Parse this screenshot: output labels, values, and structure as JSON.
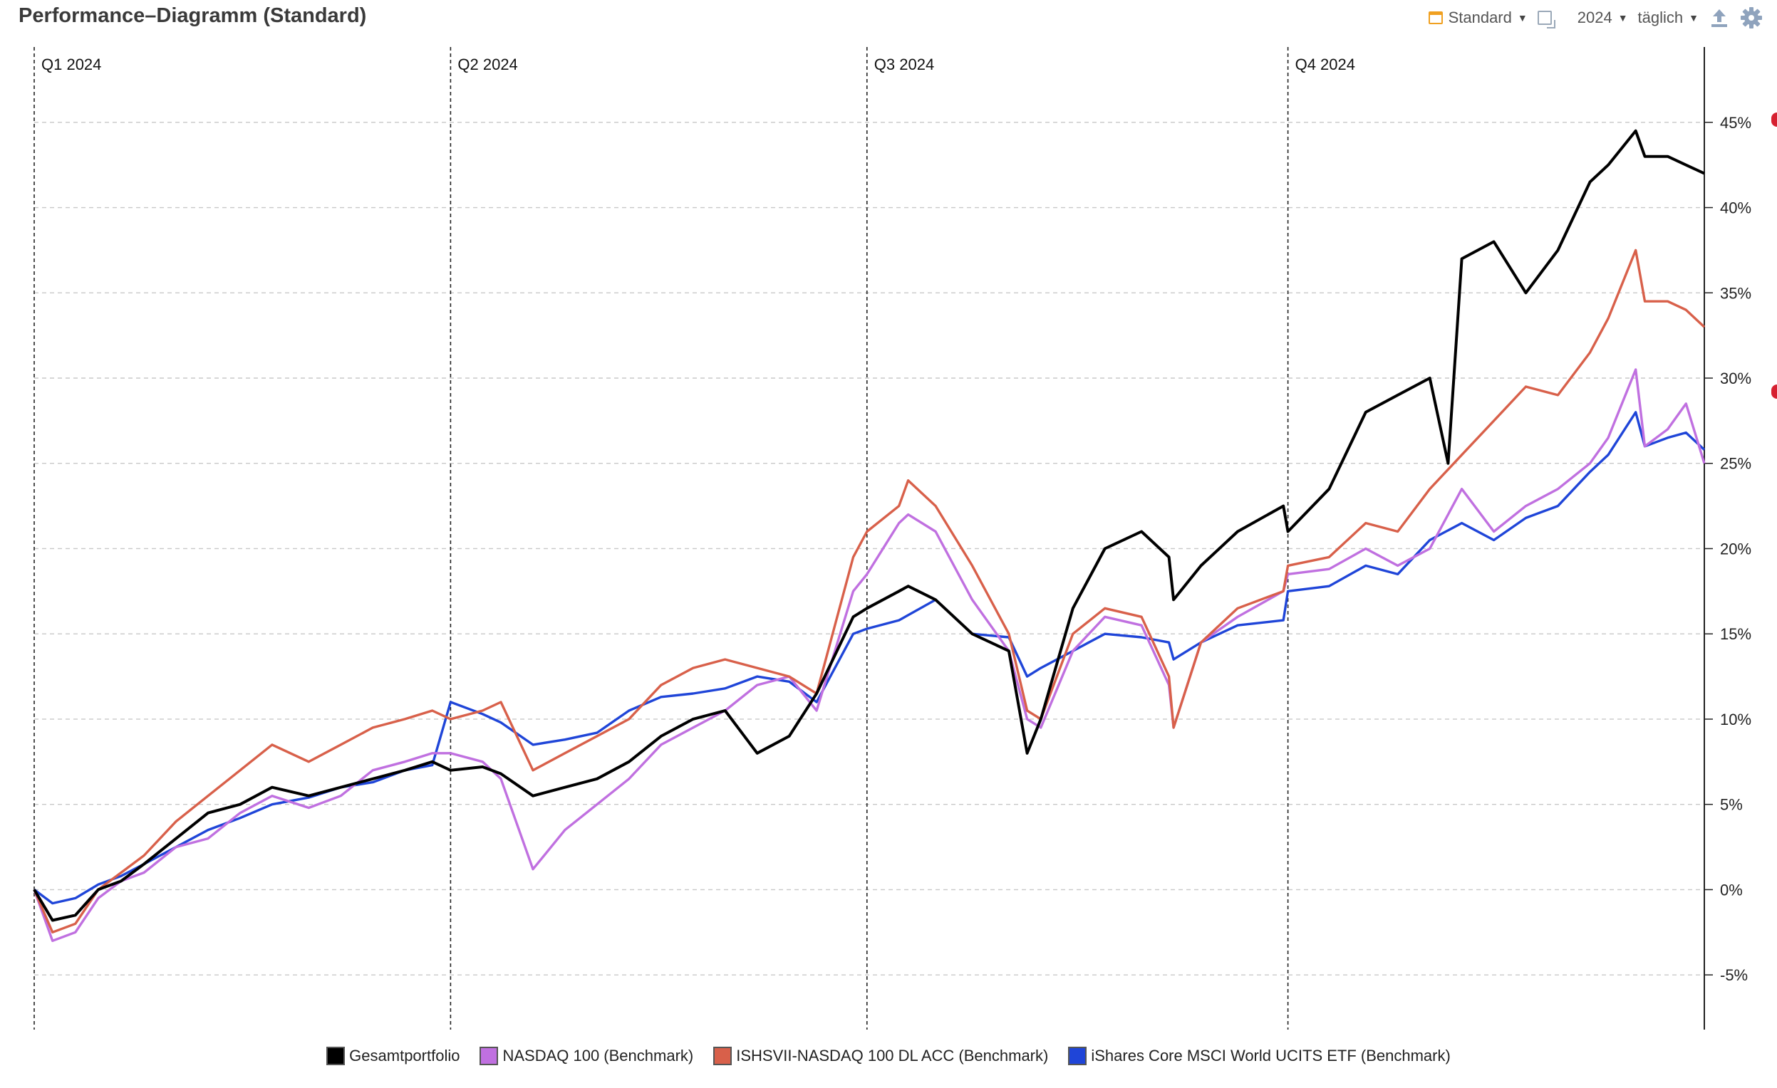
{
  "header": {
    "title": "Performance–Diagramm (Standard)",
    "mode_label": "Standard",
    "year_label": "2024",
    "interval_label": "täglich"
  },
  "icons": {
    "calendar": "calendar-icon",
    "frame": "frame-icon",
    "upload": "upload-icon",
    "settings": "gear-icon"
  },
  "chart_data": {
    "type": "line",
    "title": "Performance–Diagramm (Standard)",
    "x_range": [
      "2024-01-01",
      "2024-12-31"
    ],
    "quarters": [
      {
        "label": "Q1 2024",
        "date": "2024-01-01"
      },
      {
        "label": "Q2 2024",
        "date": "2024-04-01"
      },
      {
        "label": "Q3 2024",
        "date": "2024-07-01"
      },
      {
        "label": "Q4 2024",
        "date": "2024-10-01"
      }
    ],
    "y_ticks": [
      45,
      40,
      35,
      30,
      25,
      20,
      15,
      10,
      5,
      0,
      -5
    ],
    "y_tick_labels": [
      "45%",
      "40%",
      "35%",
      "30%",
      "25%",
      "20%",
      "15%",
      "10%",
      "5%",
      "0%",
      "-5%"
    ],
    "ylim": [
      -8,
      49
    ],
    "grid": "horizontal dashed",
    "legend_position": "bottom",
    "series": [
      {
        "name": "iShares Core MSCI World UCITS ETF (Benchmark)",
        "color": "#1f45d8",
        "points": [
          [
            "2024-01-01",
            0
          ],
          [
            "2024-01-05",
            -0.8
          ],
          [
            "2024-01-10",
            -0.5
          ],
          [
            "2024-01-15",
            0.3
          ],
          [
            "2024-01-20",
            0.8
          ],
          [
            "2024-01-25",
            1.5
          ],
          [
            "2024-02-01",
            2.5
          ],
          [
            "2024-02-08",
            3.5
          ],
          [
            "2024-02-15",
            4.2
          ],
          [
            "2024-02-22",
            5.0
          ],
          [
            "2024-03-01",
            5.4
          ],
          [
            "2024-03-08",
            6.0
          ],
          [
            "2024-03-15",
            6.3
          ],
          [
            "2024-03-22",
            7.0
          ],
          [
            "2024-03-28",
            7.3
          ],
          [
            "2024-04-01",
            11.0
          ],
          [
            "2024-04-08",
            10.3
          ],
          [
            "2024-04-12",
            9.8
          ],
          [
            "2024-04-19",
            8.5
          ],
          [
            "2024-04-26",
            8.8
          ],
          [
            "2024-05-03",
            9.2
          ],
          [
            "2024-05-10",
            10.5
          ],
          [
            "2024-05-17",
            11.3
          ],
          [
            "2024-05-24",
            11.5
          ],
          [
            "2024-05-31",
            11.8
          ],
          [
            "2024-06-07",
            12.5
          ],
          [
            "2024-06-14",
            12.2
          ],
          [
            "2024-06-20",
            11.0
          ],
          [
            "2024-06-28",
            15.0
          ],
          [
            "2024-07-01",
            15.3
          ],
          [
            "2024-07-08",
            15.8
          ],
          [
            "2024-07-16",
            17.0
          ],
          [
            "2024-07-24",
            15.0
          ],
          [
            "2024-08-01",
            14.8
          ],
          [
            "2024-08-05",
            12.5
          ],
          [
            "2024-08-08",
            13.0
          ],
          [
            "2024-08-15",
            14.0
          ],
          [
            "2024-08-22",
            15.0
          ],
          [
            "2024-08-30",
            14.8
          ],
          [
            "2024-09-05",
            14.5
          ],
          [
            "2024-09-06",
            13.5
          ],
          [
            "2024-09-12",
            14.5
          ],
          [
            "2024-09-20",
            15.5
          ],
          [
            "2024-09-30",
            15.8
          ],
          [
            "2024-10-01",
            17.5
          ],
          [
            "2024-10-10",
            17.8
          ],
          [
            "2024-10-18",
            19.0
          ],
          [
            "2024-10-25",
            18.5
          ],
          [
            "2024-11-01",
            20.5
          ],
          [
            "2024-11-08",
            21.5
          ],
          [
            "2024-11-15",
            20.5
          ],
          [
            "2024-11-22",
            21.8
          ],
          [
            "2024-11-29",
            22.5
          ],
          [
            "2024-12-06",
            24.5
          ],
          [
            "2024-12-10",
            25.5
          ],
          [
            "2024-12-16",
            28.0
          ],
          [
            "2024-12-18",
            26.0
          ],
          [
            "2024-12-23",
            26.5
          ],
          [
            "2024-12-27",
            26.8
          ],
          [
            "2024-12-31",
            25.8
          ]
        ]
      },
      {
        "name": "NASDAQ 100 (Benchmark)",
        "color": "#c070e0",
        "points": [
          [
            "2024-01-01",
            0
          ],
          [
            "2024-01-05",
            -3.0
          ],
          [
            "2024-01-10",
            -2.5
          ],
          [
            "2024-01-15",
            -0.5
          ],
          [
            "2024-01-20",
            0.5
          ],
          [
            "2024-01-25",
            1.0
          ],
          [
            "2024-02-01",
            2.5
          ],
          [
            "2024-02-08",
            3.0
          ],
          [
            "2024-02-15",
            4.5
          ],
          [
            "2024-02-22",
            5.5
          ],
          [
            "2024-03-01",
            4.8
          ],
          [
            "2024-03-08",
            5.5
          ],
          [
            "2024-03-15",
            7.0
          ],
          [
            "2024-03-22",
            7.5
          ],
          [
            "2024-03-28",
            8.0
          ],
          [
            "2024-04-01",
            8.0
          ],
          [
            "2024-04-08",
            7.5
          ],
          [
            "2024-04-12",
            6.5
          ],
          [
            "2024-04-19",
            1.2
          ],
          [
            "2024-04-26",
            3.5
          ],
          [
            "2024-05-03",
            5.0
          ],
          [
            "2024-05-10",
            6.5
          ],
          [
            "2024-05-17",
            8.5
          ],
          [
            "2024-05-24",
            9.5
          ],
          [
            "2024-05-31",
            10.5
          ],
          [
            "2024-06-07",
            12.0
          ],
          [
            "2024-06-14",
            12.5
          ],
          [
            "2024-06-20",
            10.5
          ],
          [
            "2024-06-28",
            17.5
          ],
          [
            "2024-07-01",
            18.5
          ],
          [
            "2024-07-08",
            21.5
          ],
          [
            "2024-07-10",
            22.0
          ],
          [
            "2024-07-16",
            21.0
          ],
          [
            "2024-07-24",
            17.0
          ],
          [
            "2024-08-01",
            14.0
          ],
          [
            "2024-08-05",
            10.0
          ],
          [
            "2024-08-08",
            9.5
          ],
          [
            "2024-08-15",
            14.0
          ],
          [
            "2024-08-22",
            16.0
          ],
          [
            "2024-08-30",
            15.5
          ],
          [
            "2024-09-05",
            12.0
          ],
          [
            "2024-09-06",
            9.5
          ],
          [
            "2024-09-12",
            14.5
          ],
          [
            "2024-09-20",
            16.0
          ],
          [
            "2024-09-30",
            17.5
          ],
          [
            "2024-10-01",
            18.5
          ],
          [
            "2024-10-10",
            18.8
          ],
          [
            "2024-10-18",
            20.0
          ],
          [
            "2024-10-25",
            19.0
          ],
          [
            "2024-11-01",
            20.0
          ],
          [
            "2024-11-08",
            23.5
          ],
          [
            "2024-11-15",
            21.0
          ],
          [
            "2024-11-22",
            22.5
          ],
          [
            "2024-11-29",
            23.5
          ],
          [
            "2024-12-06",
            25.0
          ],
          [
            "2024-12-10",
            26.5
          ],
          [
            "2024-12-16",
            30.5
          ],
          [
            "2024-12-18",
            26.0
          ],
          [
            "2024-12-23",
            27.0
          ],
          [
            "2024-12-27",
            28.5
          ],
          [
            "2024-12-31",
            25.0
          ]
        ]
      },
      {
        "name": "ISHSVII-NASDAQ 100 DL ACC (Benchmark)",
        "color": "#d8604a",
        "points": [
          [
            "2024-01-01",
            0
          ],
          [
            "2024-01-05",
            -2.5
          ],
          [
            "2024-01-10",
            -2.0
          ],
          [
            "2024-01-15",
            0.0
          ],
          [
            "2024-01-20",
            1.0
          ],
          [
            "2024-01-25",
            2.0
          ],
          [
            "2024-02-01",
            4.0
          ],
          [
            "2024-02-08",
            5.5
          ],
          [
            "2024-02-15",
            7.0
          ],
          [
            "2024-02-22",
            8.5
          ],
          [
            "2024-03-01",
            7.5
          ],
          [
            "2024-03-08",
            8.5
          ],
          [
            "2024-03-15",
            9.5
          ],
          [
            "2024-03-22",
            10.0
          ],
          [
            "2024-03-28",
            10.5
          ],
          [
            "2024-04-01",
            10.0
          ],
          [
            "2024-04-08",
            10.5
          ],
          [
            "2024-04-12",
            11.0
          ],
          [
            "2024-04-19",
            7.0
          ],
          [
            "2024-04-26",
            8.0
          ],
          [
            "2024-05-03",
            9.0
          ],
          [
            "2024-05-10",
            10.0
          ],
          [
            "2024-05-17",
            12.0
          ],
          [
            "2024-05-24",
            13.0
          ],
          [
            "2024-05-31",
            13.5
          ],
          [
            "2024-06-07",
            13.0
          ],
          [
            "2024-06-14",
            12.5
          ],
          [
            "2024-06-20",
            11.5
          ],
          [
            "2024-06-28",
            19.5
          ],
          [
            "2024-07-01",
            21.0
          ],
          [
            "2024-07-08",
            22.5
          ],
          [
            "2024-07-10",
            24.0
          ],
          [
            "2024-07-16",
            22.5
          ],
          [
            "2024-07-24",
            19.0
          ],
          [
            "2024-08-01",
            15.0
          ],
          [
            "2024-08-05",
            10.5
          ],
          [
            "2024-08-08",
            10.0
          ],
          [
            "2024-08-15",
            15.0
          ],
          [
            "2024-08-22",
            16.5
          ],
          [
            "2024-08-30",
            16.0
          ],
          [
            "2024-09-05",
            12.5
          ],
          [
            "2024-09-06",
            9.5
          ],
          [
            "2024-09-12",
            14.5
          ],
          [
            "2024-09-20",
            16.5
          ],
          [
            "2024-09-30",
            17.5
          ],
          [
            "2024-10-01",
            19.0
          ],
          [
            "2024-10-10",
            19.5
          ],
          [
            "2024-10-18",
            21.5
          ],
          [
            "2024-10-25",
            21.0
          ],
          [
            "2024-11-01",
            23.5
          ],
          [
            "2024-11-08",
            25.5
          ],
          [
            "2024-11-15",
            27.5
          ],
          [
            "2024-11-22",
            29.5
          ],
          [
            "2024-11-29",
            29.0
          ],
          [
            "2024-12-06",
            31.5
          ],
          [
            "2024-12-10",
            33.5
          ],
          [
            "2024-12-16",
            37.5
          ],
          [
            "2024-12-18",
            34.5
          ],
          [
            "2024-12-23",
            34.5
          ],
          [
            "2024-12-27",
            34.0
          ],
          [
            "2024-12-31",
            33.0
          ]
        ]
      },
      {
        "name": "Gesamtportfolio",
        "color": "#000000",
        "points": [
          [
            "2024-01-01",
            0
          ],
          [
            "2024-01-05",
            -1.8
          ],
          [
            "2024-01-10",
            -1.5
          ],
          [
            "2024-01-15",
            0.0
          ],
          [
            "2024-01-20",
            0.5
          ],
          [
            "2024-01-25",
            1.5
          ],
          [
            "2024-02-01",
            3.0
          ],
          [
            "2024-02-08",
            4.5
          ],
          [
            "2024-02-15",
            5.0
          ],
          [
            "2024-02-22",
            6.0
          ],
          [
            "2024-03-01",
            5.5
          ],
          [
            "2024-03-08",
            6.0
          ],
          [
            "2024-03-15",
            6.5
          ],
          [
            "2024-03-22",
            7.0
          ],
          [
            "2024-03-28",
            7.5
          ],
          [
            "2024-04-01",
            7.0
          ],
          [
            "2024-04-08",
            7.2
          ],
          [
            "2024-04-12",
            6.8
          ],
          [
            "2024-04-19",
            5.5
          ],
          [
            "2024-04-26",
            6.0
          ],
          [
            "2024-05-03",
            6.5
          ],
          [
            "2024-05-10",
            7.5
          ],
          [
            "2024-05-17",
            9.0
          ],
          [
            "2024-05-24",
            10.0
          ],
          [
            "2024-05-31",
            10.5
          ],
          [
            "2024-06-07",
            8.0
          ],
          [
            "2024-06-14",
            9.0
          ],
          [
            "2024-06-20",
            11.5
          ],
          [
            "2024-06-28",
            16.0
          ],
          [
            "2024-07-01",
            16.5
          ],
          [
            "2024-07-08",
            17.5
          ],
          [
            "2024-07-10",
            17.8
          ],
          [
            "2024-07-16",
            17.0
          ],
          [
            "2024-07-24",
            15.0
          ],
          [
            "2024-08-01",
            14.0
          ],
          [
            "2024-08-05",
            8.0
          ],
          [
            "2024-08-08",
            10.0
          ],
          [
            "2024-08-15",
            16.5
          ],
          [
            "2024-08-22",
            20.0
          ],
          [
            "2024-08-30",
            21.0
          ],
          [
            "2024-09-05",
            19.5
          ],
          [
            "2024-09-06",
            17.0
          ],
          [
            "2024-09-12",
            19.0
          ],
          [
            "2024-09-20",
            21.0
          ],
          [
            "2024-09-30",
            22.5
          ],
          [
            "2024-10-01",
            21.0
          ],
          [
            "2024-10-10",
            23.5
          ],
          [
            "2024-10-18",
            28.0
          ],
          [
            "2024-10-25",
            29.0
          ],
          [
            "2024-11-01",
            30.0
          ],
          [
            "2024-11-05",
            25.0
          ],
          [
            "2024-11-08",
            37.0
          ],
          [
            "2024-11-15",
            38.0
          ],
          [
            "2024-11-22",
            35.0
          ],
          [
            "2024-11-29",
            37.5
          ],
          [
            "2024-12-06",
            41.5
          ],
          [
            "2024-12-10",
            42.5
          ],
          [
            "2024-12-16",
            44.5
          ],
          [
            "2024-12-18",
            43.0
          ],
          [
            "2024-12-23",
            43.0
          ],
          [
            "2024-12-27",
            42.5
          ],
          [
            "2024-12-31",
            42.0
          ]
        ]
      }
    ]
  },
  "legend": {
    "items": [
      {
        "label": "Gesamtportfolio",
        "color": "#000000"
      },
      {
        "label": "NASDAQ 100 (Benchmark)",
        "color": "#c070e0"
      },
      {
        "label": "ISHSVII-NASDAQ 100 DL ACC (Benchmark)",
        "color": "#d8604a"
      },
      {
        "label": "iShares Core MSCI World UCITS ETF (Benchmark)",
        "color": "#1f45d8"
      }
    ]
  }
}
